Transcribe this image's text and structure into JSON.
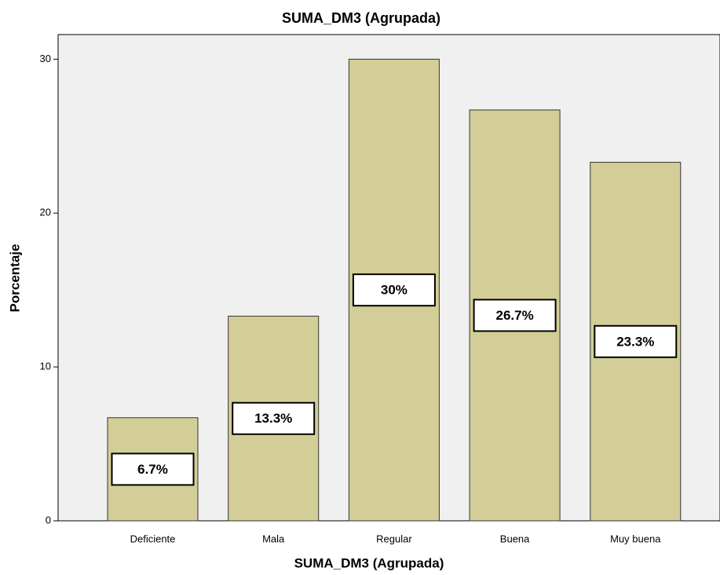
{
  "chart_data": {
    "type": "bar",
    "title": "SUMA_DM3 (Agrupada)",
    "x_label": "SUMA_DM3 (Agrupada)",
    "y_label": "Porcentaje",
    "categories": [
      "Deficiente",
      "Mala",
      "Regular",
      "Buena",
      "Muy buena"
    ],
    "values": [
      6.7,
      13.3,
      30,
      26.7,
      23.3
    ],
    "value_labels": [
      "6.7%",
      "13.3%",
      "30%",
      "26.7%",
      "23.3%"
    ],
    "color": "#d3ce97",
    "ylim": [
      0,
      31.6
    ],
    "yticks": [
      0,
      10,
      20,
      30
    ],
    "grid": false
  }
}
